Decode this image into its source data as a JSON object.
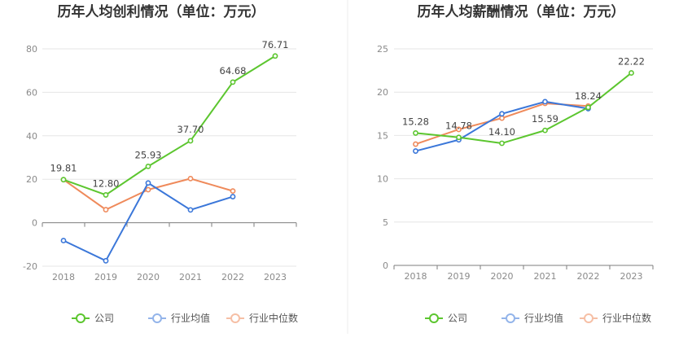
{
  "chart_data": [
    {
      "type": "line",
      "title": "历年人均创利情况（单位：万元）",
      "categories": [
        "2018",
        "2019",
        "2020",
        "2021",
        "2022",
        "2023"
      ],
      "ylim": [
        -20,
        80
      ],
      "yticks": [
        -20,
        0,
        20,
        40,
        60,
        80
      ],
      "grid": true,
      "legend_position": "bottom",
      "series": [
        {
          "name": "公司",
          "color": "#5cc62f",
          "labeled": true,
          "values": [
            19.81,
            12.8,
            25.93,
            37.7,
            64.68,
            76.71
          ],
          "labels": [
            "19.81",
            "12.80",
            "25.93",
            "37.70",
            "64.68",
            "76.71"
          ]
        },
        {
          "name": "行业均值",
          "color": "#3b77d9",
          "labeled": false,
          "values": [
            -8.2,
            -17.5,
            18.3,
            5.9,
            12.0,
            null
          ]
        },
        {
          "name": "行业中位数",
          "color": "#ef8a5b",
          "labeled": false,
          "values": [
            19.8,
            6.0,
            15.2,
            20.3,
            14.6,
            null
          ]
        }
      ]
    },
    {
      "type": "line",
      "title": "历年人均薪酬情况（单位：万元）",
      "categories": [
        "2018",
        "2019",
        "2020",
        "2021",
        "2022",
        "2023"
      ],
      "ylim": [
        0,
        25
      ],
      "yticks": [
        0,
        5,
        10,
        15,
        20,
        25
      ],
      "grid": true,
      "legend_position": "bottom",
      "series": [
        {
          "name": "公司",
          "color": "#5cc62f",
          "labeled": true,
          "values": [
            15.28,
            14.78,
            14.1,
            15.59,
            18.24,
            22.22
          ],
          "labels": [
            "15.28",
            "14.78",
            "14.10",
            "15.59",
            "18.24",
            "22.22"
          ]
        },
        {
          "name": "行业均值",
          "color": "#3b77d9",
          "labeled": false,
          "values": [
            13.2,
            14.5,
            17.5,
            18.9,
            18.1,
            null
          ]
        },
        {
          "name": "行业中位数",
          "color": "#ef8a5b",
          "labeled": false,
          "values": [
            14.0,
            15.7,
            17.0,
            18.7,
            18.4,
            null
          ]
        }
      ]
    }
  ]
}
